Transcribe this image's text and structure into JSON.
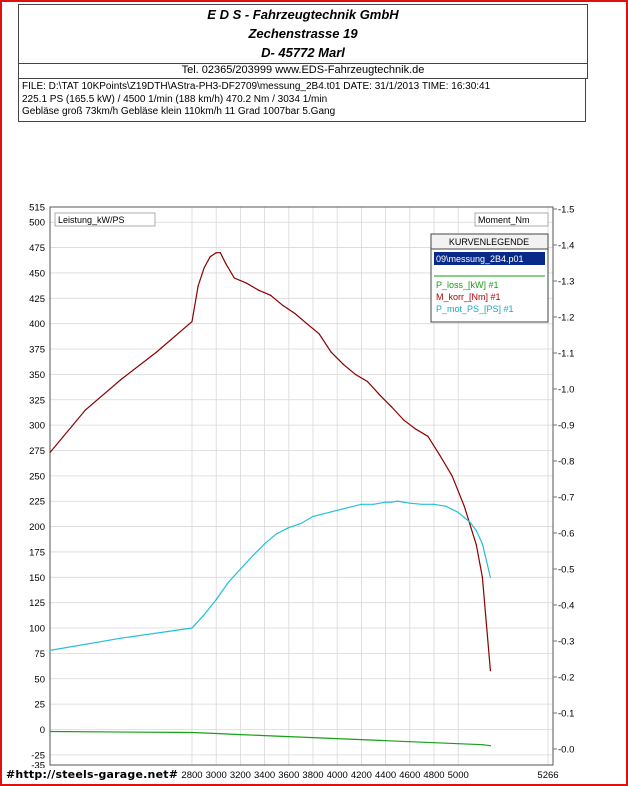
{
  "header": {
    "company": "E D S - Fahrzeugtechnik GmbH",
    "street": "Zechenstrasse 19",
    "city": "D- 45772 Marl",
    "contact": "Tel. 02365/203999     www.EDS-Fahrzeugtechnik.de"
  },
  "info": {
    "line1": "FILE: D:\\TAT 10KPoints\\Z19DTH\\AStra-PH3-DF2709\\messung_2B4.t01   DATE: 31/1/2013  TIME: 16:30:41",
    "line2": "225.1 PS  (165.5 kW) / 4500 1/min (188 km/h)    470.2 Nm / 3034 1/min",
    "line3": "Gebläse groß 73km/h Gebläse klein 110km/h    11 Grad 1007bar  5.Gang"
  },
  "watermark": "#http://steels-garage.net#",
  "colors": {
    "torque": "#8b0000",
    "power": "#22c0d8",
    "loss": "#16a016",
    "grid": "#d8d8d8",
    "frame": "#e01010"
  },
  "chart_data": {
    "type": "line",
    "left_axis_label": "Leistung_kW/PS",
    "right_axis_label": "Moment_Nm",
    "left_ticks": [
      "515",
      "500",
      "475",
      "450",
      "425",
      "400",
      "375",
      "350",
      "325",
      "300",
      "275",
      "250",
      "225",
      "200",
      "175",
      "150",
      "125",
      "100",
      "75",
      "50",
      "25",
      "0",
      "-25",
      "-35"
    ],
    "right_ticks": [
      "1.5",
      "1.4",
      "1.3",
      "1.2",
      "1.1",
      "1.0",
      "0.9",
      "0.8",
      "0.7",
      "0.6",
      "0.5",
      "0.4",
      "0.3",
      "0.2",
      "0.1",
      "0.0"
    ],
    "x_ticks": [
      "2800",
      "3000",
      "3200",
      "3400",
      "3600",
      "3800",
      "4000",
      "4200",
      "4400",
      "4600",
      "4800",
      "5000",
      "5266"
    ],
    "ylim_left": [
      -35,
      515
    ],
    "legend": {
      "title": "KURVENLEGENDE",
      "file": "09\\messung_2B4.p01",
      "entries": [
        {
          "label": "P_loss_[kW] #1",
          "color": "#16a016"
        },
        {
          "label": "M_korr_[Nm] #1",
          "color": "#8b0000"
        },
        {
          "label": "P_mot_PS_[PS] #1",
          "color": "#22c0d8"
        }
      ]
    },
    "series": [
      {
        "name": "M_korr_[Nm] #1",
        "axis": "left",
        "x": [
          2600,
          2650,
          2700,
          2750,
          2800,
          2850,
          2900,
          2950,
          3000,
          3034,
          3080,
          3150,
          3250,
          3350,
          3450,
          3550,
          3650,
          3750,
          3850,
          3950,
          4050,
          4150,
          4250,
          4350,
          4450,
          4550,
          4650,
          4750,
          4850,
          4950,
          5050,
          5150,
          5200,
          5266
        ],
        "y": [
          273,
          315,
          345,
          372,
          402,
          437,
          455,
          466,
          470,
          470,
          459,
          445,
          440,
          433,
          428,
          418,
          410,
          400,
          390,
          372,
          360,
          350,
          343,
          330,
          318,
          305,
          296,
          289,
          270,
          250,
          220,
          182,
          150,
          58
        ]
      },
      {
        "name": "P_mot_PS_[PS] #1",
        "axis": "left",
        "x": [
          2600,
          2700,
          2800,
          2900,
          3000,
          3100,
          3200,
          3300,
          3400,
          3500,
          3600,
          3700,
          3800,
          3900,
          4000,
          4100,
          4200,
          4300,
          4400,
          4450,
          4500,
          4550,
          4600,
          4700,
          4800,
          4900,
          5000,
          5100,
          5150,
          5200,
          5266
        ],
        "y": [
          78,
          90,
          100,
          113,
          128,
          145,
          158,
          171,
          183,
          193,
          199,
          203,
          210,
          213,
          216,
          219,
          222,
          222,
          224,
          224,
          225.1,
          224,
          223,
          222,
          222,
          220,
          214,
          204,
          196,
          183,
          150
        ]
      },
      {
        "name": "P_loss_[kW] #1",
        "axis": "left",
        "x": [
          2600,
          2800,
          3000,
          3200,
          3400,
          3600,
          3800,
          4000,
          4200,
          4400,
          4600,
          4800,
          5000,
          5200,
          5266
        ],
        "y": [
          -2,
          -3,
          -4,
          -5,
          -6,
          -7,
          -8,
          -9,
          -10,
          -11,
          -12,
          -13,
          -14,
          -15,
          -16
        ]
      }
    ]
  }
}
